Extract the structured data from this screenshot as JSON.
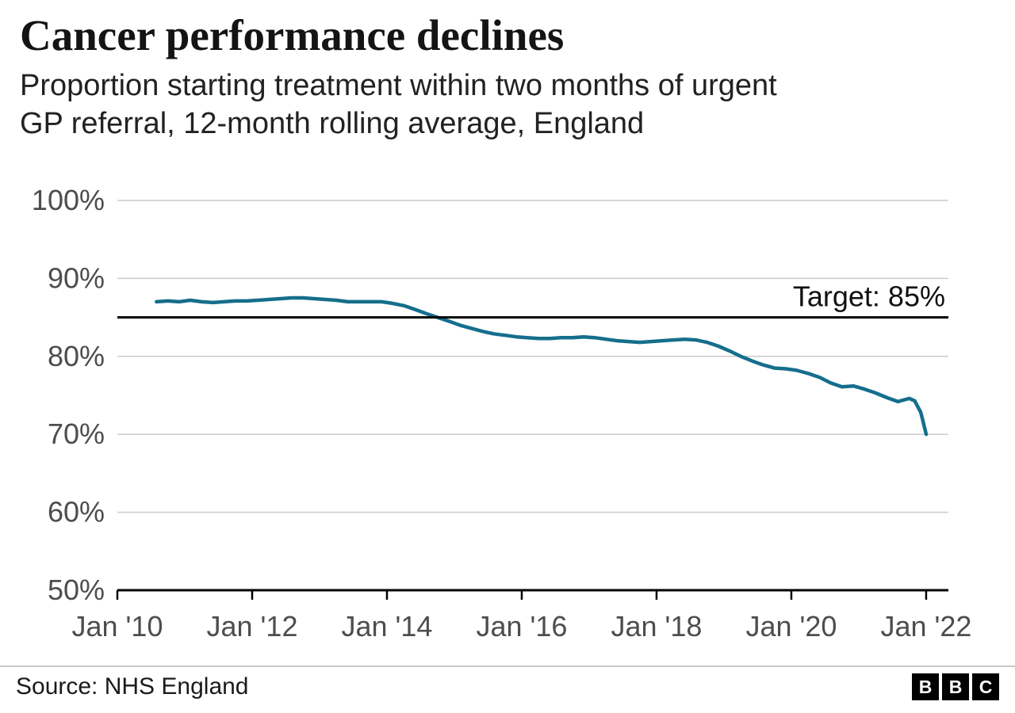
{
  "chart_data": {
    "type": "line",
    "title": "Cancer performance declines",
    "subtitle": "Proportion starting treatment within two months of urgent GP referral, 12-month rolling average, England",
    "subtitle_lines": [
      "Proportion starting treatment within two months of urgent",
      "GP referral, 12-month rolling average, England"
    ],
    "xlabel": "",
    "ylabel": "",
    "xlim": [
      2010,
      2022.33
    ],
    "ylim": [
      50,
      100
    ],
    "grid": "horizontal",
    "legend": "none",
    "target_line": {
      "value": 85,
      "label": "Target: 85%"
    },
    "x_ticks": [
      {
        "value": 2010,
        "label": "Jan '10"
      },
      {
        "value": 2012,
        "label": "Jan '12"
      },
      {
        "value": 2014,
        "label": "Jan '14"
      },
      {
        "value": 2016,
        "label": "Jan '16"
      },
      {
        "value": 2018,
        "label": "Jan '18"
      },
      {
        "value": 2020,
        "label": "Jan '20"
      },
      {
        "value": 2022,
        "label": "Jan '22"
      }
    ],
    "y_ticks": [
      {
        "value": 100,
        "label": "100%"
      },
      {
        "value": 90,
        "label": "90%"
      },
      {
        "value": 80,
        "label": "80%"
      },
      {
        "value": 70,
        "label": "70%"
      },
      {
        "value": 60,
        "label": "60%"
      },
      {
        "value": 50,
        "label": "50%"
      }
    ],
    "series": [
      {
        "name": "Proportion starting treatment within two months, 12-month rolling average",
        "color": "#156E8C",
        "points": [
          [
            2010.58,
            87.0
          ],
          [
            2010.75,
            87.1
          ],
          [
            2010.92,
            87.0
          ],
          [
            2011.08,
            87.2
          ],
          [
            2011.25,
            87.0
          ],
          [
            2011.42,
            86.9
          ],
          [
            2011.58,
            87.0
          ],
          [
            2011.75,
            87.1
          ],
          [
            2011.92,
            87.1
          ],
          [
            2012.08,
            87.2
          ],
          [
            2012.25,
            87.3
          ],
          [
            2012.42,
            87.4
          ],
          [
            2012.58,
            87.5
          ],
          [
            2012.75,
            87.5
          ],
          [
            2012.92,
            87.4
          ],
          [
            2013.08,
            87.3
          ],
          [
            2013.25,
            87.2
          ],
          [
            2013.42,
            87.0
          ],
          [
            2013.58,
            87.0
          ],
          [
            2013.75,
            87.0
          ],
          [
            2013.92,
            87.0
          ],
          [
            2014.08,
            86.8
          ],
          [
            2014.25,
            86.5
          ],
          [
            2014.42,
            86.0
          ],
          [
            2014.58,
            85.5
          ],
          [
            2014.75,
            85.0
          ],
          [
            2014.92,
            84.5
          ],
          [
            2015.08,
            84.0
          ],
          [
            2015.25,
            83.6
          ],
          [
            2015.42,
            83.2
          ],
          [
            2015.58,
            82.9
          ],
          [
            2015.75,
            82.7
          ],
          [
            2015.92,
            82.5
          ],
          [
            2016.08,
            82.4
          ],
          [
            2016.25,
            82.3
          ],
          [
            2016.42,
            82.3
          ],
          [
            2016.58,
            82.4
          ],
          [
            2016.75,
            82.4
          ],
          [
            2016.92,
            82.5
          ],
          [
            2017.08,
            82.4
          ],
          [
            2017.25,
            82.2
          ],
          [
            2017.42,
            82.0
          ],
          [
            2017.58,
            81.9
          ],
          [
            2017.75,
            81.8
          ],
          [
            2017.92,
            81.9
          ],
          [
            2018.08,
            82.0
          ],
          [
            2018.25,
            82.1
          ],
          [
            2018.42,
            82.2
          ],
          [
            2018.58,
            82.1
          ],
          [
            2018.75,
            81.8
          ],
          [
            2018.92,
            81.3
          ],
          [
            2019.08,
            80.7
          ],
          [
            2019.25,
            80.0
          ],
          [
            2019.42,
            79.4
          ],
          [
            2019.58,
            78.9
          ],
          [
            2019.75,
            78.5
          ],
          [
            2019.92,
            78.4
          ],
          [
            2020.08,
            78.2
          ],
          [
            2020.25,
            77.8
          ],
          [
            2020.42,
            77.3
          ],
          [
            2020.58,
            76.6
          ],
          [
            2020.75,
            76.1
          ],
          [
            2020.92,
            76.2
          ],
          [
            2021.08,
            75.8
          ],
          [
            2021.25,
            75.3
          ],
          [
            2021.42,
            74.7
          ],
          [
            2021.58,
            74.2
          ],
          [
            2021.75,
            74.6
          ],
          [
            2021.83,
            74.3
          ],
          [
            2021.92,
            72.8
          ],
          [
            2022.0,
            70.0
          ]
        ]
      }
    ],
    "colors": {
      "line": "#156E8C",
      "grid": "#CBCBCB",
      "axis": "#000000",
      "tick_label": "#4D4D4D",
      "target": "#000000"
    },
    "source": "Source: NHS England"
  },
  "footer": {
    "logo_letters": [
      "B",
      "B",
      "C"
    ]
  }
}
